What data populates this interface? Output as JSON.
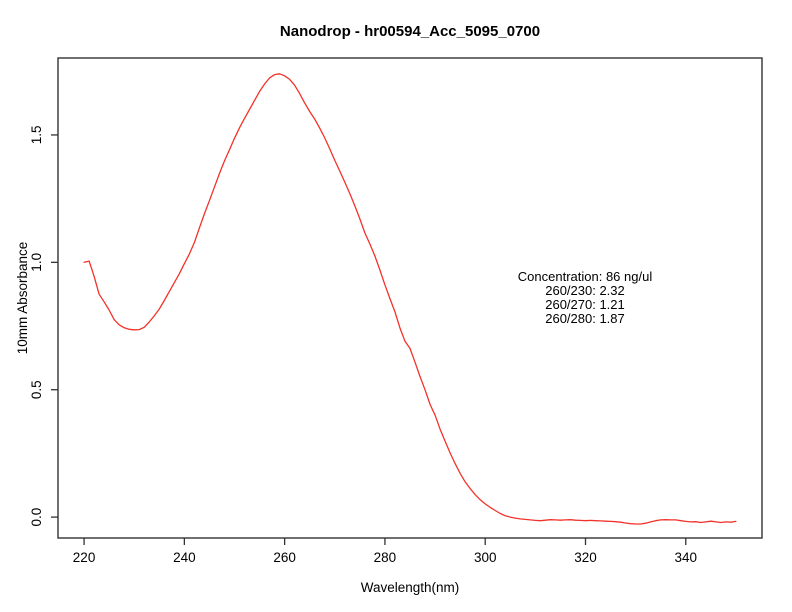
{
  "colors": {
    "background": "#ffffff",
    "axis": "#333333",
    "text": "#000000",
    "curve": "#f2322a"
  },
  "chart_data": {
    "type": "line",
    "title": "Nanodrop - hr00594_Acc_5095_0700",
    "xlabel": "Wavelength(nm)",
    "ylabel": "10mm Absorbance",
    "xlim": [
      214.8,
      355.2
    ],
    "ylim": [
      -0.082,
      1.802
    ],
    "x_ticks": [
      220,
      240,
      260,
      280,
      300,
      320,
      340
    ],
    "y_ticks": [
      0.0,
      0.5,
      1.0,
      1.5
    ],
    "y_tick_labels": [
      "0.0",
      "0.5",
      "1.0",
      "1.5"
    ],
    "grid": false,
    "legend": null,
    "annotation": {
      "lines": [
        "Concentration: 86 ng/ul",
        "260/230: 2.32",
        "260/270: 1.21",
        "260/280: 1.87"
      ]
    },
    "series": [
      {
        "name": "absorbance-spectrum",
        "color": "#f2322a",
        "x": [
          220,
          221,
          222,
          223,
          224,
          225,
          226,
          227,
          228,
          229,
          230,
          231,
          232,
          233,
          234,
          235,
          236,
          237,
          238,
          239,
          240,
          241,
          242,
          243,
          244,
          245,
          246,
          247,
          248,
          249,
          250,
          251,
          252,
          253,
          254,
          255,
          256,
          257,
          258,
          259,
          260,
          261,
          262,
          263,
          264,
          265,
          266,
          267,
          268,
          269,
          270,
          271,
          272,
          273,
          274,
          275,
          276,
          277,
          278,
          279,
          280,
          281,
          282,
          283,
          284,
          285,
          286,
          287,
          288,
          289,
          290,
          291,
          292,
          293,
          294,
          295,
          296,
          297,
          298,
          299,
          300,
          301,
          302,
          303,
          304,
          305,
          306,
          307,
          308,
          309,
          310,
          311,
          312,
          313,
          314,
          315,
          316,
          317,
          318,
          319,
          320,
          321,
          322,
          323,
          324,
          325,
          326,
          327,
          328,
          329,
          330,
          331,
          332,
          333,
          334,
          335,
          336,
          337,
          338,
          339,
          340,
          341,
          342,
          343,
          344,
          345,
          346,
          347,
          348,
          349,
          350
        ],
        "y": [
          1.0,
          1.005,
          0.945,
          0.875,
          0.845,
          0.813,
          0.775,
          0.755,
          0.743,
          0.737,
          0.735,
          0.736,
          0.745,
          0.766,
          0.79,
          0.817,
          0.85,
          0.885,
          0.92,
          0.955,
          0.995,
          1.033,
          1.078,
          1.135,
          1.19,
          1.242,
          1.295,
          1.349,
          1.398,
          1.442,
          1.487,
          1.528,
          1.565,
          1.6,
          1.636,
          1.671,
          1.7,
          1.724,
          1.737,
          1.74,
          1.732,
          1.718,
          1.695,
          1.662,
          1.625,
          1.592,
          1.562,
          1.527,
          1.488,
          1.445,
          1.4,
          1.358,
          1.315,
          1.27,
          1.222,
          1.17,
          1.115,
          1.072,
          1.025,
          0.97,
          0.912,
          0.858,
          0.805,
          0.742,
          0.69,
          0.662,
          0.608,
          0.552,
          0.5,
          0.442,
          0.4,
          0.345,
          0.298,
          0.252,
          0.21,
          0.172,
          0.138,
          0.112,
          0.088,
          0.068,
          0.052,
          0.038,
          0.026,
          0.014,
          0.005,
          0.0,
          -0.004,
          -0.007,
          -0.009,
          -0.011,
          -0.013,
          -0.014,
          -0.012,
          -0.01,
          -0.011,
          -0.012,
          -0.011,
          -0.01,
          -0.012,
          -0.013,
          -0.014,
          -0.013,
          -0.014,
          -0.015,
          -0.016,
          -0.017,
          -0.018,
          -0.02,
          -0.023,
          -0.026,
          -0.027,
          -0.027,
          -0.024,
          -0.019,
          -0.014,
          -0.011,
          -0.01,
          -0.011,
          -0.011,
          -0.014,
          -0.017,
          -0.019,
          -0.018,
          -0.021,
          -0.019,
          -0.016,
          -0.019,
          -0.021,
          -0.019,
          -0.02,
          -0.017
        ]
      }
    ]
  }
}
